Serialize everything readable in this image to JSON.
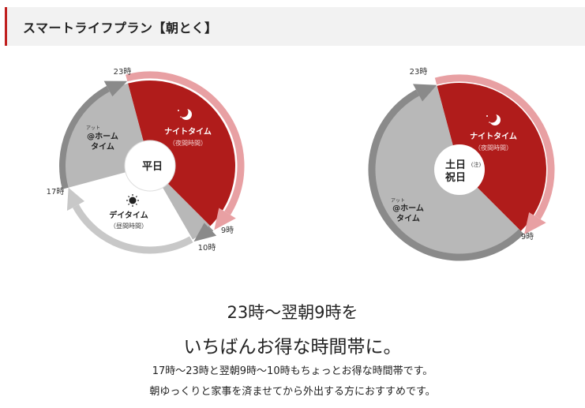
{
  "header": {
    "title": "スマートライフプラン【朝とく】"
  },
  "colors": {
    "night": "#b01c1b",
    "night_arrow": "#e8a0a3",
    "home": "#b8b8b8",
    "home_arrow": "#8a8a8a",
    "day": "#ffffff",
    "day_arrow": "#c8c8c8",
    "accent": "#c0201f"
  },
  "weekday": {
    "center": "平日",
    "labels": {
      "t23": "23時",
      "t9": "9時",
      "t10": "10時",
      "t17": "17時"
    },
    "night": {
      "name": "ナイトタイム",
      "sub": "（夜間時間）",
      "icon": "moon-icon"
    },
    "home": {
      "ruby": "アット",
      "name1": "@ホーム",
      "name2": "タイム"
    },
    "day": {
      "name": "デイタイム",
      "sub": "（昼間時間）",
      "icon": "sun-icon"
    }
  },
  "holiday": {
    "center1": "土日",
    "note": "(注)",
    "center2": "祝日",
    "labels": {
      "t23": "23時",
      "t9": "9時"
    },
    "night": {
      "name": "ナイトタイム",
      "sub": "（夜間時間）",
      "icon": "moon-icon"
    },
    "home": {
      "ruby": "アット",
      "name1": "@ホーム",
      "name2": "タイム"
    }
  },
  "copy": {
    "lead1": "23時〜翌朝9時を",
    "lead2": "いちばんお得な時間帯に。",
    "sub1": "17時〜23時と翌朝9時〜10時もちょっとお得な時間帯です。",
    "sub2": "朝ゆっくりと家事を済ませてから外出する方におすすめです。"
  }
}
